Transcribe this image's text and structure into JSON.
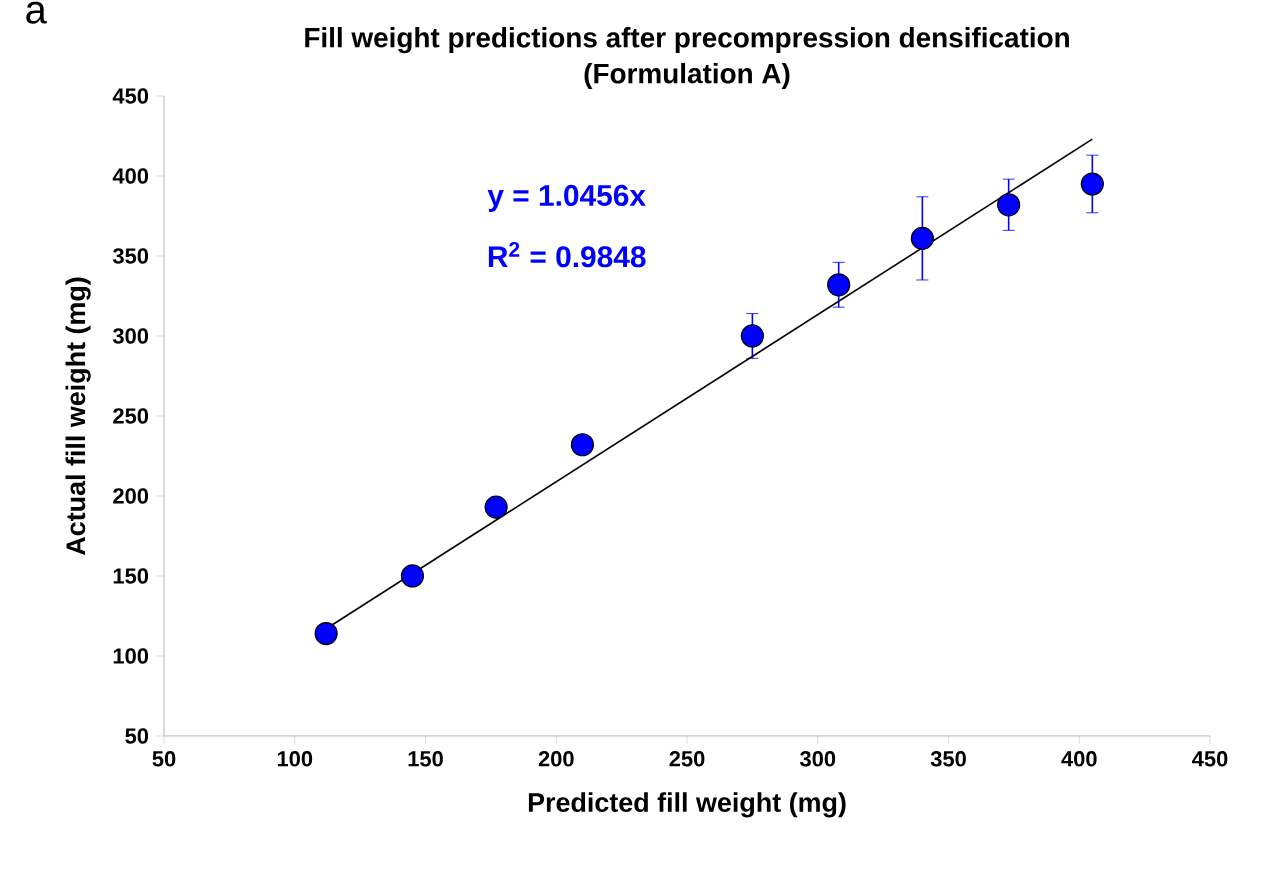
{
  "chart_data": {
    "type": "scatter",
    "title": "Fill weight predictions after precompression densification",
    "subtitle": "(Formulation A)",
    "xlabel": "Predicted fill weight (mg)",
    "ylabel": "Actual fill weight (mg)",
    "annotations": [
      "a",
      "y = 1.0456x",
      "R$^{2}$ = 0.9848"
    ],
    "xlim": [
      50,
      450
    ],
    "ylim": [
      50,
      450
    ],
    "xticks": [
      50,
      100,
      150,
      200,
      250,
      300,
      350,
      400,
      450
    ],
    "yticks": [
      50,
      100,
      150,
      200,
      250,
      300,
      350,
      400,
      450
    ],
    "grid": false,
    "series": [
      {
        "marker": "circle",
        "color": "#0000ff",
        "x": [
          112,
          145,
          177,
          210,
          275,
          308,
          340,
          373,
          405
        ],
        "values": [
          114,
          150,
          193,
          232,
          300,
          332,
          361,
          382,
          395
        ],
        "errors": [
          null,
          null,
          null,
          null,
          14,
          14,
          26,
          16,
          18
        ]
      },
      {
        "type": "line",
        "color": "#000000",
        "x": [
          112,
          405
        ],
        "values": [
          117,
          423
        ]
      }
    ]
  }
}
